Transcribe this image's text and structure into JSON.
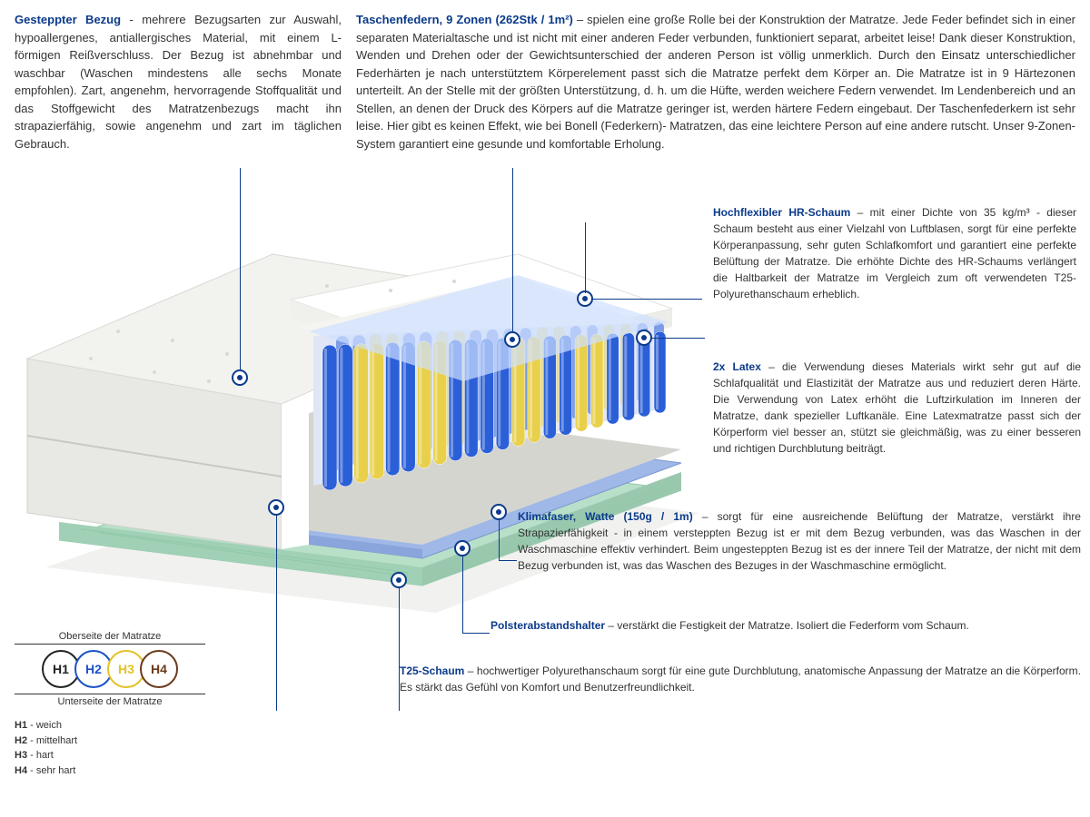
{
  "topLeft": {
    "title": "Gesteppter Bezug",
    "body": " - mehrere Bezugsarten zur Auswahl, hypoallergenes, antiallergisches Material, mit einem L-förmigen Reißverschluss. Der Bezug ist abnehmbar und waschbar (Waschen mindestens alle sechs Monate empfohlen). Zart, angenehm, hervorragende Stoffqualität und das Stoffgewicht des Matratzenbezugs macht ihn strapazierfähig, sowie angenehm und zart im täglichen Gebrauch."
  },
  "topRight": {
    "title": "Taschenfedern, 9 Zonen (262Stk / 1m²)",
    "body": " – spielen eine große Rolle bei der Konstruktion der Matratze. Jede Feder befindet sich in einer separaten Materialtasche und ist nicht mit einer anderen Feder verbunden, funktioniert separat, arbeitet leise! Dank dieser Konstruktion, Wenden und Drehen oder der Gewichtsunterschied der anderen Person ist völlig unmerklich. Durch den Einsatz unterschiedlicher Federhärten je nach unterstütztem Körperelement passt sich die Matratze perfekt dem Körper an. Die Matratze ist in 9 Härtezonen unterteilt. An der Stelle mit der größten Unterstützung, d. h. um die Hüfte, werden weichere Federn verwendet. Im Lendenbereich und an Stellen, an denen der Druck des Körpers auf die Matratze geringer ist, werden härtere Federn eingebaut. Der Taschenfederkern ist sehr leise. Hier gibt es keinen Effekt, wie bei Bonell (Federkern)- Matratzen, das eine leichtere Person auf eine andere rutscht. Unser 9-Zonen-System garantiert eine gesunde und komfortable Erholung."
  },
  "side": {
    "hr": {
      "title": "Hochflexibler HR-Schaum",
      "body": " – mit einer Dichte von 35 kg/m³ - dieser Schaum besteht aus einer Vielzahl von Luftblasen, sorgt für eine perfekte Körperanpassung, sehr guten Schlafkomfort und garantiert eine perfekte Belüftung der Matratze. Die erhöhte Dichte des HR-Schaums verlängert die Haltbarkeit der Matratze im Vergleich zum oft verwendeten T25-Polyurethanschaum erheblich."
    },
    "latex": {
      "title": "2x Latex",
      "body": " – die Verwendung dieses Materials wirkt sehr gut auf die Schlafqualität und Elastizität der Matratze aus und reduziert deren Härte. Die Verwendung von Latex erhöht die Luftzirkulation im Inneren der Matratze, dank spezieller Luftkanäle. Eine Latexmatratze passt sich der Körperform viel besser an, stützt sie gleichmäßig, was zu einer besseren und richtigen Durchblutung beiträgt."
    },
    "klima": {
      "title": "Klimafaser, Watte (150g / 1m)",
      "body": " – sorgt für eine ausreichende Belüftung der Matratze, verstärkt ihre Strapazierfähigkeit - in einem versteppten Bezug ist er mit dem Bezug verbunden, was das Waschen in der Waschmaschine effektiv verhindert. Beim ungesteppten Bezug ist es der innere Teil der Matratze, der nicht mit dem Bezug verbunden ist, was das Waschen des Bezuges in der Waschmaschine ermöglicht."
    },
    "polster": {
      "title": "Polsterabstandshalter",
      "body": " – verstärkt die Festigkeit der Matratze. Isoliert die Federform vom Schaum."
    },
    "t25": {
      "title": "T25-Schaum",
      "body": " – hochwertiger Polyurethanschaum sorgt für eine gute Durchblutung, anatomische Anpassung der Matratze an die Körperform. Es stärkt das Gefühl von Komfort und Benutzerfreundlichkeit."
    }
  },
  "legend": {
    "top": "Oberseite der Matratze",
    "bottom": "Unterseite der Matratze",
    "circles": [
      {
        "label": "H1",
        "color": "#222222"
      },
      {
        "label": "H2",
        "color": "#1b52c9"
      },
      {
        "label": "H3",
        "color": "#e3c227"
      },
      {
        "label": "H4",
        "color": "#6b3a1a"
      }
    ],
    "keys": [
      {
        "k": "H1",
        "v": " - weich"
      },
      {
        "k": "H2",
        "v": " - mittelhart"
      },
      {
        "k": "H3",
        "v": " - hart"
      },
      {
        "k": "H4",
        "v": " - sehr hart"
      }
    ]
  },
  "colors": {
    "accent": "#0b3a8a",
    "springBlue": "#2a5fd8",
    "springYellow": "#e8d04a",
    "foamGreen": "#b8e0c8",
    "foamWhite": "#f5f5f0",
    "coverGray": "#e8e8e5",
    "latexBlue": "#9fb8e8"
  }
}
